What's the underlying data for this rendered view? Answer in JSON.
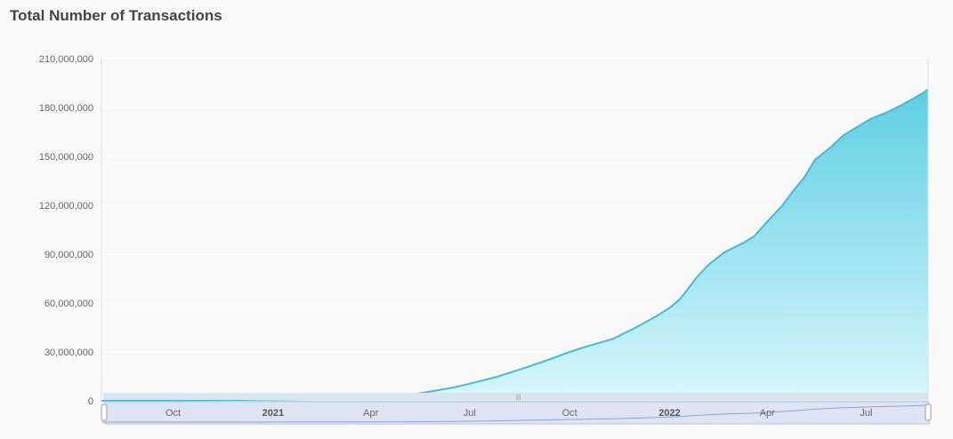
{
  "chart_data": {
    "type": "area",
    "title": "Total Number of Transactions",
    "xlabel": "",
    "ylabel": "",
    "x_ticks": [
      {
        "label": "Oct",
        "date": "2020-10-01"
      },
      {
        "label": "2021",
        "date": "2021-01-01",
        "bold": true
      },
      {
        "label": "Apr",
        "date": "2021-04-01"
      },
      {
        "label": "Jul",
        "date": "2021-07-01"
      },
      {
        "label": "Oct",
        "date": "2021-10-01"
      },
      {
        "label": "2022",
        "date": "2022-01-01",
        "bold": true
      },
      {
        "label": "Apr",
        "date": "2022-04-01"
      },
      {
        "label": "Jul",
        "date": "2022-07-01"
      }
    ],
    "y_ticks": [
      "0",
      "30,000,000",
      "60,000,000",
      "90,000,000",
      "120,000,000",
      "150,000,000",
      "180,000,000",
      "210,000,000"
    ],
    "ylim": [
      0,
      210000000
    ],
    "xlim": [
      "2020-07-27",
      "2022-08-27"
    ],
    "grid": true,
    "navigator": true,
    "colors": {
      "line": "#3fbdd6",
      "fill_top": "#5ecfe4",
      "fill_bottom": "#d8f6fc"
    },
    "series": [
      {
        "x": [
          "2020-07-27",
          "2020-09-01",
          "2020-11-01",
          "2021-01-01",
          "2021-03-01",
          "2021-04-01",
          "2021-05-01",
          "2021-05-20",
          "2021-06-15",
          "2021-07-01",
          "2021-07-25",
          "2021-08-20",
          "2021-09-15",
          "2021-10-01",
          "2021-10-20",
          "2021-11-10",
          "2021-12-01",
          "2021-12-20",
          "2022-01-01",
          "2022-01-10",
          "2022-01-15",
          "2022-01-25",
          "2022-02-05",
          "2022-02-20",
          "2022-03-10",
          "2022-03-20",
          "2022-04-01",
          "2022-04-15",
          "2022-04-25",
          "2022-05-05",
          "2022-05-15",
          "2022-05-30",
          "2022-06-10",
          "2022-06-25",
          "2022-07-05",
          "2022-07-20",
          "2022-08-01",
          "2022-08-15",
          "2022-08-27"
        ],
        "values": [
          0,
          200000,
          400000,
          800000,
          1300000,
          1800000,
          3000000,
          5000000,
          8000000,
          10500000,
          14500000,
          20000000,
          26000000,
          30000000,
          34000000,
          38000000,
          45000000,
          52000000,
          57000000,
          62000000,
          66000000,
          75000000,
          83000000,
          91000000,
          97000000,
          101000000,
          110000000,
          120000000,
          129000000,
          137000000,
          148000000,
          156000000,
          163000000,
          169000000,
          173000000,
          177000000,
          181000000,
          186000000,
          191000000
        ]
      }
    ]
  }
}
